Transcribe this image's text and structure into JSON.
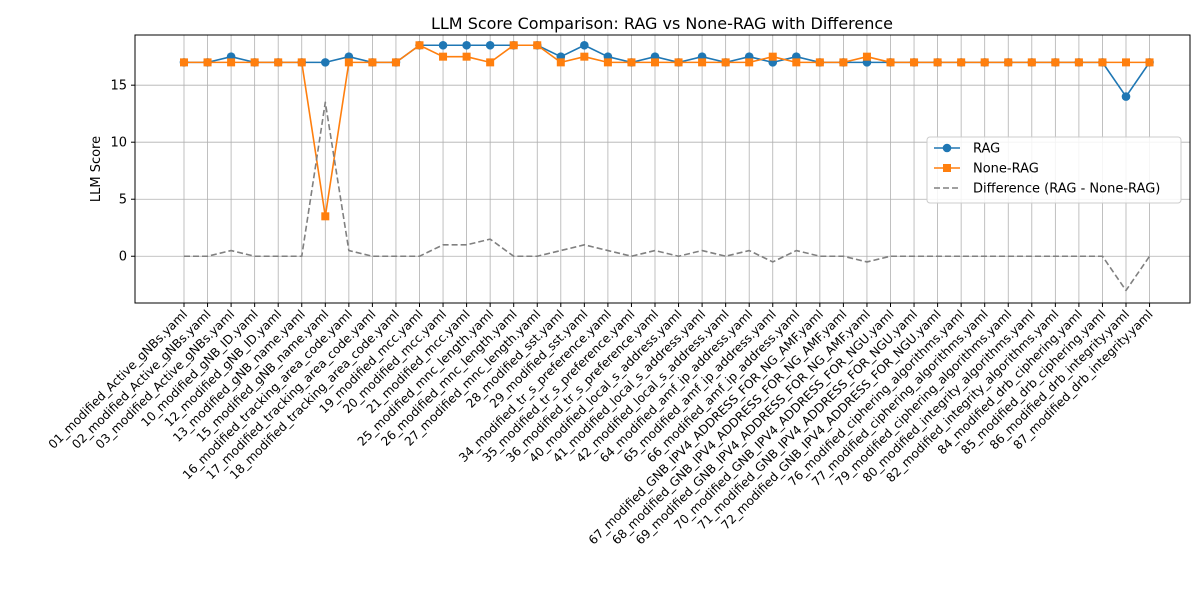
{
  "chart_data": {
    "type": "line",
    "title": "LLM Score Comparison: RAG vs None-RAG with Difference",
    "xlabel": "",
    "ylabel": "LLM Score",
    "ylim": [
      -4.1,
      19.4
    ],
    "yticks": [
      0,
      5,
      10,
      15
    ],
    "grid": true,
    "legend_position": "center-right",
    "categories": [
      "01_modified_Active_gNBs.yaml",
      "02_modified_Active_gNBs.yaml",
      "03_modified_Active_gNBs.yaml",
      "10_modified_gNB_ID.yaml",
      "12_modified_gNB_ID.yaml",
      "13_modified_gNB_name.yaml",
      "15_modified_gNB_name.yaml",
      "16_modified_tracking_area_code.yaml",
      "17_modified_tracking_area_code.yaml",
      "18_modified_tracking_area_code.yaml",
      "19_modified_mcc.yaml",
      "20_modified_mcc.yaml",
      "21_modified_mcc.yaml",
      "25_modified_mnc_length.yaml",
      "26_modified_mnc_length.yaml",
      "27_modified_mnc_length.yaml",
      "28_modified_sst.yaml",
      "29_modified_sst.yaml",
      "34_modified_tr_s_preference.yaml",
      "35_modified_tr_s_preference.yaml",
      "36_modified_tr_s_preference.yaml",
      "40_modified_local_s_address.yaml",
      "41_modified_local_s_address.yaml",
      "42_modified_local_s_address.yaml",
      "64_modified_amf_ip_address.yaml",
      "65_modified_amf_ip_address.yaml",
      "66_modified_amf_ip_address.yaml",
      "67_modified_GNB_IPV4_ADDRESS_FOR_NG_AMF.yaml",
      "68_modified_GNB_IPV4_ADDRESS_FOR_NG_AMF.yaml",
      "69_modified_GNB_IPV4_ADDRESS_FOR_NG_AMF.yaml",
      "70_modified_GNB_IPV4_ADDRESS_FOR_NGU.yaml",
      "71_modified_GNB_IPV4_ADDRESS_FOR_NGU.yaml",
      "72_modified_GNB_IPV4_ADDRESS_FOR_NGU.yaml",
      "76_modified_ciphering_algorithms.yaml",
      "77_modified_ciphering_algorithms.yaml",
      "79_modified_ciphering_algorithms.yaml",
      "80_modified_integrity_algorithms.yaml",
      "82_modified_integrity_algorithms.yaml",
      "84_modified_drb_ciphering.yaml",
      "85_modified_drb_ciphering.yaml",
      "86_modified_drb_integrity.yaml",
      "87_modified_drb_integrity.yaml"
    ],
    "series": [
      {
        "name": "RAG",
        "color": "#1f77b4",
        "marker": "circle",
        "linestyle": "solid",
        "values": [
          17,
          17,
          17.5,
          17,
          17,
          17,
          17,
          17.5,
          17,
          17,
          18.5,
          18.5,
          18.5,
          18.5,
          18.5,
          18.5,
          17.5,
          18.5,
          17.5,
          17,
          17.5,
          17,
          17.5,
          17,
          17.5,
          17,
          17.5,
          17,
          17,
          17,
          17,
          17,
          17,
          17,
          17,
          17,
          17,
          17,
          17,
          17,
          14,
          17
        ]
      },
      {
        "name": "None-RAG",
        "color": "#ff7f0e",
        "marker": "square",
        "linestyle": "solid",
        "values": [
          17,
          17,
          17,
          17,
          17,
          17,
          3.5,
          17,
          17,
          17,
          18.5,
          17.5,
          17.5,
          17,
          18.5,
          18.5,
          17,
          17.5,
          17,
          17,
          17,
          17,
          17,
          17,
          17,
          17.5,
          17,
          17,
          17,
          17.5,
          17,
          17,
          17,
          17,
          17,
          17,
          17,
          17,
          17,
          17,
          17,
          17
        ]
      },
      {
        "name": "Difference (RAG - None-RAG)",
        "color": "#808080",
        "marker": "none",
        "linestyle": "dashed",
        "values": [
          0,
          0,
          0.5,
          0,
          0,
          0,
          13.5,
          0.5,
          0,
          0,
          0,
          1,
          1,
          1.5,
          0,
          0,
          0.5,
          1,
          0.5,
          0,
          0.5,
          0,
          0.5,
          0,
          0.5,
          -0.5,
          0.5,
          0,
          0,
          -0.5,
          0,
          0,
          0,
          0,
          0,
          0,
          0,
          0,
          0,
          0,
          -3,
          0
        ]
      }
    ]
  }
}
